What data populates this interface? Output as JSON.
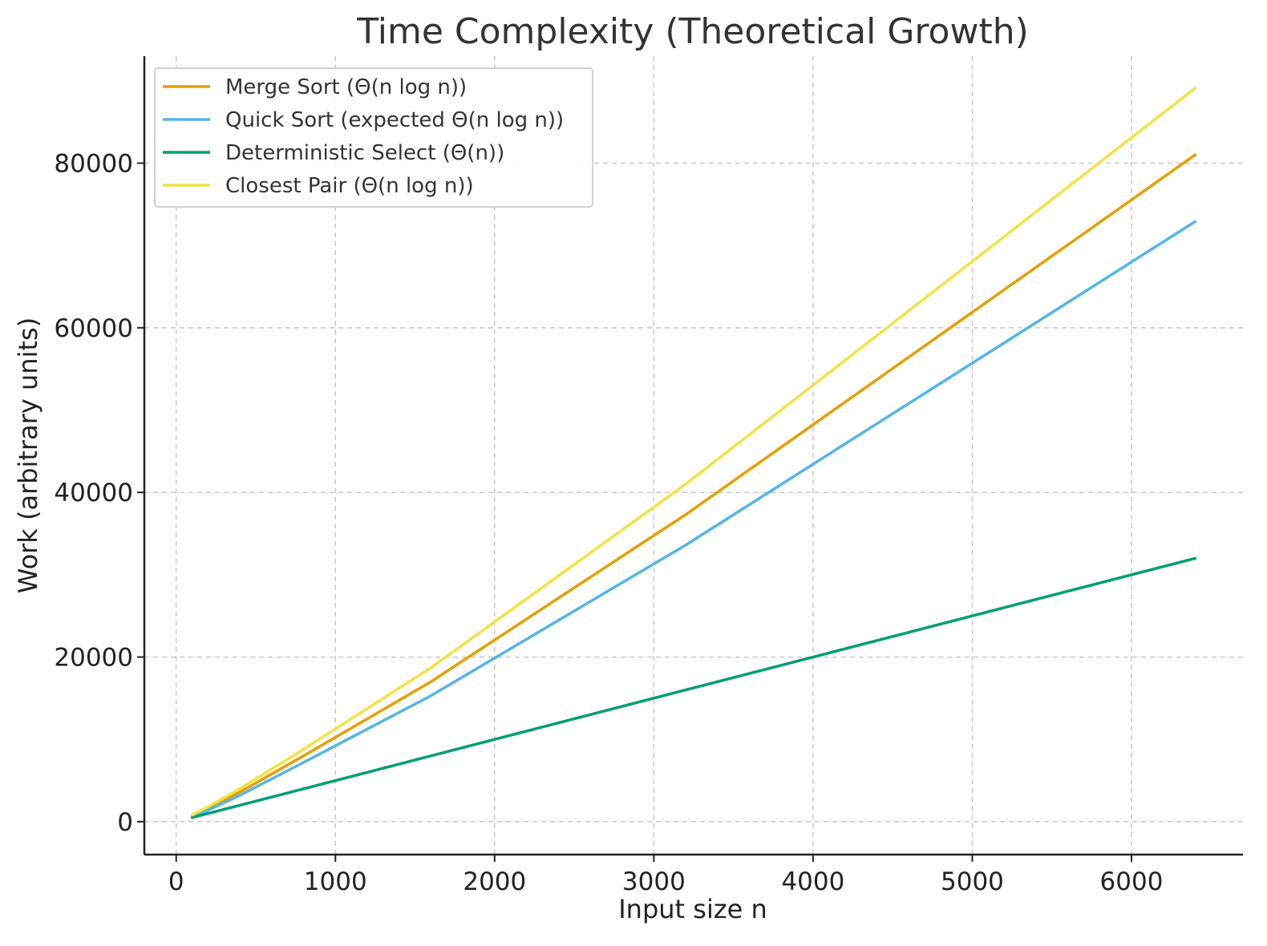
{
  "chart_data": {
    "type": "line",
    "title": "Time Complexity (Theoretical Growth)",
    "xlabel": "Input size n",
    "ylabel": "Work (arbitrary units)",
    "xlim": [
      -200,
      6700
    ],
    "ylim": [
      -4000,
      93000
    ],
    "xticks": [
      0,
      1000,
      2000,
      3000,
      4000,
      5000,
      6000
    ],
    "yticks": [
      0,
      20000,
      40000,
      60000,
      80000
    ],
    "grid": true,
    "legend_position": "top-left",
    "x": [
      100,
      200,
      400,
      800,
      1600,
      3200,
      6400
    ],
    "series": [
      {
        "name": "Merge Sort (Θ(n log n))",
        "color": "#E69F00",
        "values": [
          700,
          1600,
          3600,
          8000,
          17000,
          37300,
          81000
        ]
      },
      {
        "name": "Quick Sort (expected Θ(n log n))",
        "color": "#56B4E9",
        "values": [
          600,
          1400,
          3200,
          7200,
          15300,
          33600,
          72900
        ]
      },
      {
        "name": "Deterministic Select (Θ(n))",
        "color": "#009E73",
        "values": [
          500,
          1000,
          2000,
          4000,
          8000,
          16000,
          32000
        ]
      },
      {
        "name": "Closest Pair (Θ(n log n))",
        "color": "#F0E442",
        "values": [
          800,
          1800,
          4000,
          8800,
          18700,
          41000,
          89100
        ]
      }
    ]
  }
}
